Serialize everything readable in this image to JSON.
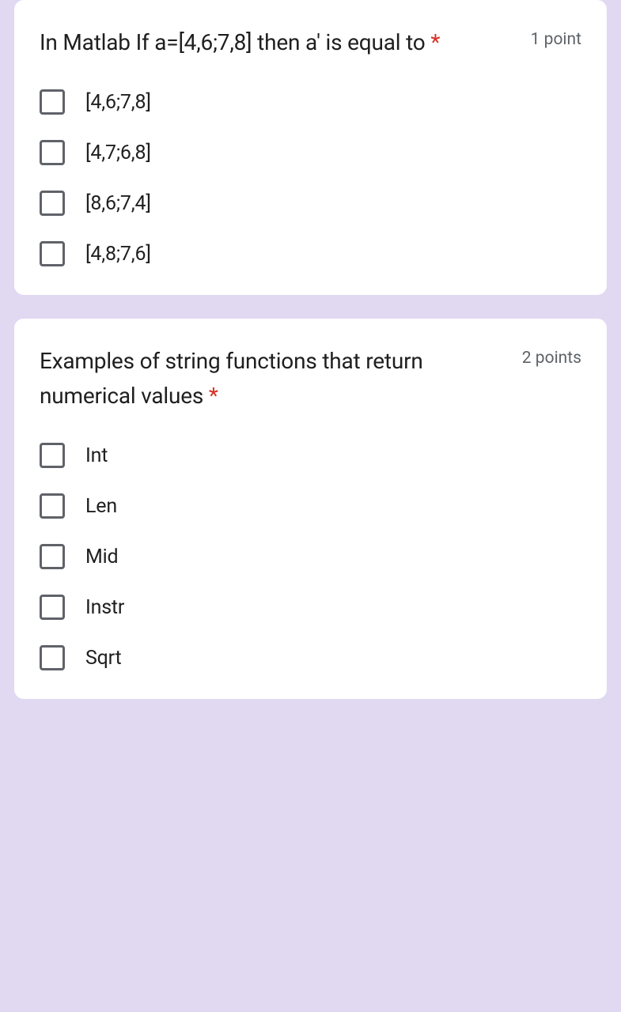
{
  "background_color": "#e1d8f1",
  "card_background": "#ffffff",
  "checkbox_border": "#5f6368",
  "text_color": "#1f1f1f",
  "points_color": "#5f6368",
  "required_color": "#d93025",
  "questions": [
    {
      "text": "In Matlab If a=[4,6;7,8] then a' is equal to",
      "required_marker": "*",
      "points": "1 point",
      "options": [
        "[4,6;7,8]",
        "[4,7;6,8]",
        "[8,6;7,4]",
        "[4,8;7,6]"
      ]
    },
    {
      "text": "Examples of string functions that return numerical values",
      "required_marker": "*",
      "points": "2 points",
      "options": [
        "Int",
        "Len",
        "Mid",
        "Instr",
        "Sqrt"
      ]
    }
  ]
}
